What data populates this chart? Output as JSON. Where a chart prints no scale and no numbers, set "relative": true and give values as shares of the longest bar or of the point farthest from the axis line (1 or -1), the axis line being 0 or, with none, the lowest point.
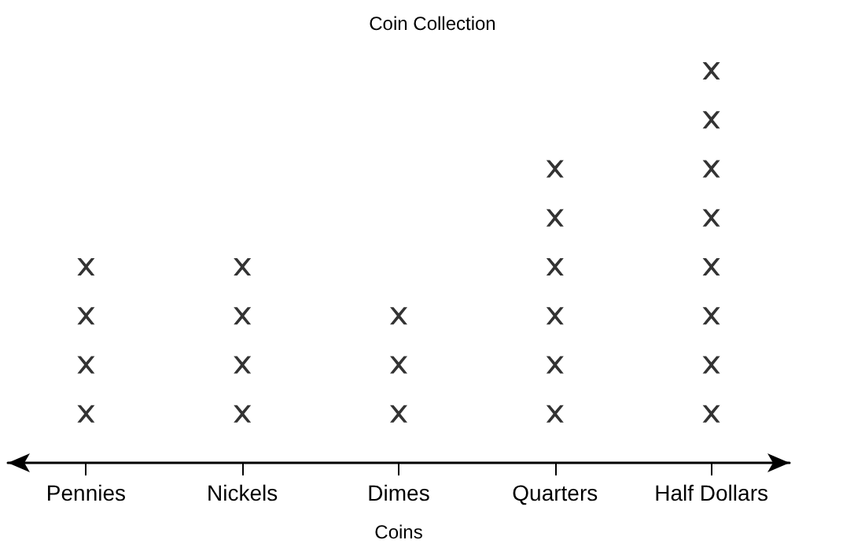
{
  "chart_data": {
    "type": "scatter",
    "title": "Coin Collection",
    "xlabel": "Coins",
    "categories": [
      "Pennies",
      "Nickels",
      "Dimes",
      "Quarters",
      "Half Dollars"
    ],
    "series": [
      {
        "color": "#000000",
        "x": [
          "Pennies",
          "Pennies",
          "Pennies",
          "Pennies",
          "Nickels",
          "Nickels",
          "Nickels",
          "Nickels",
          "Dimes",
          "Dimes",
          "Dimes",
          "Quarters",
          "Quarters",
          "Quarters",
          "Quarters",
          "Quarters",
          "Quarters",
          "Half Dollars",
          "Half Dollars",
          "Half Dollars",
          "Half Dollars",
          "Half Dollars",
          "Half Dollars",
          "Half Dollars",
          "Half Dollars"
        ],
        "values": [
          0.125,
          0.25,
          0.375,
          0.5,
          0.125,
          0.25,
          0.375,
          0.5,
          0.125,
          0.25,
          0.375,
          0.125,
          0.25,
          0.375,
          0.5,
          0.625,
          0.75,
          0.125,
          0.25,
          0.375,
          0.5,
          0.625,
          0.75,
          0.875,
          1
        ]
      }
    ],
    "relative": true,
    "tick_labels": "x",
    "grid": false,
    "marker": "cross"
  }
}
